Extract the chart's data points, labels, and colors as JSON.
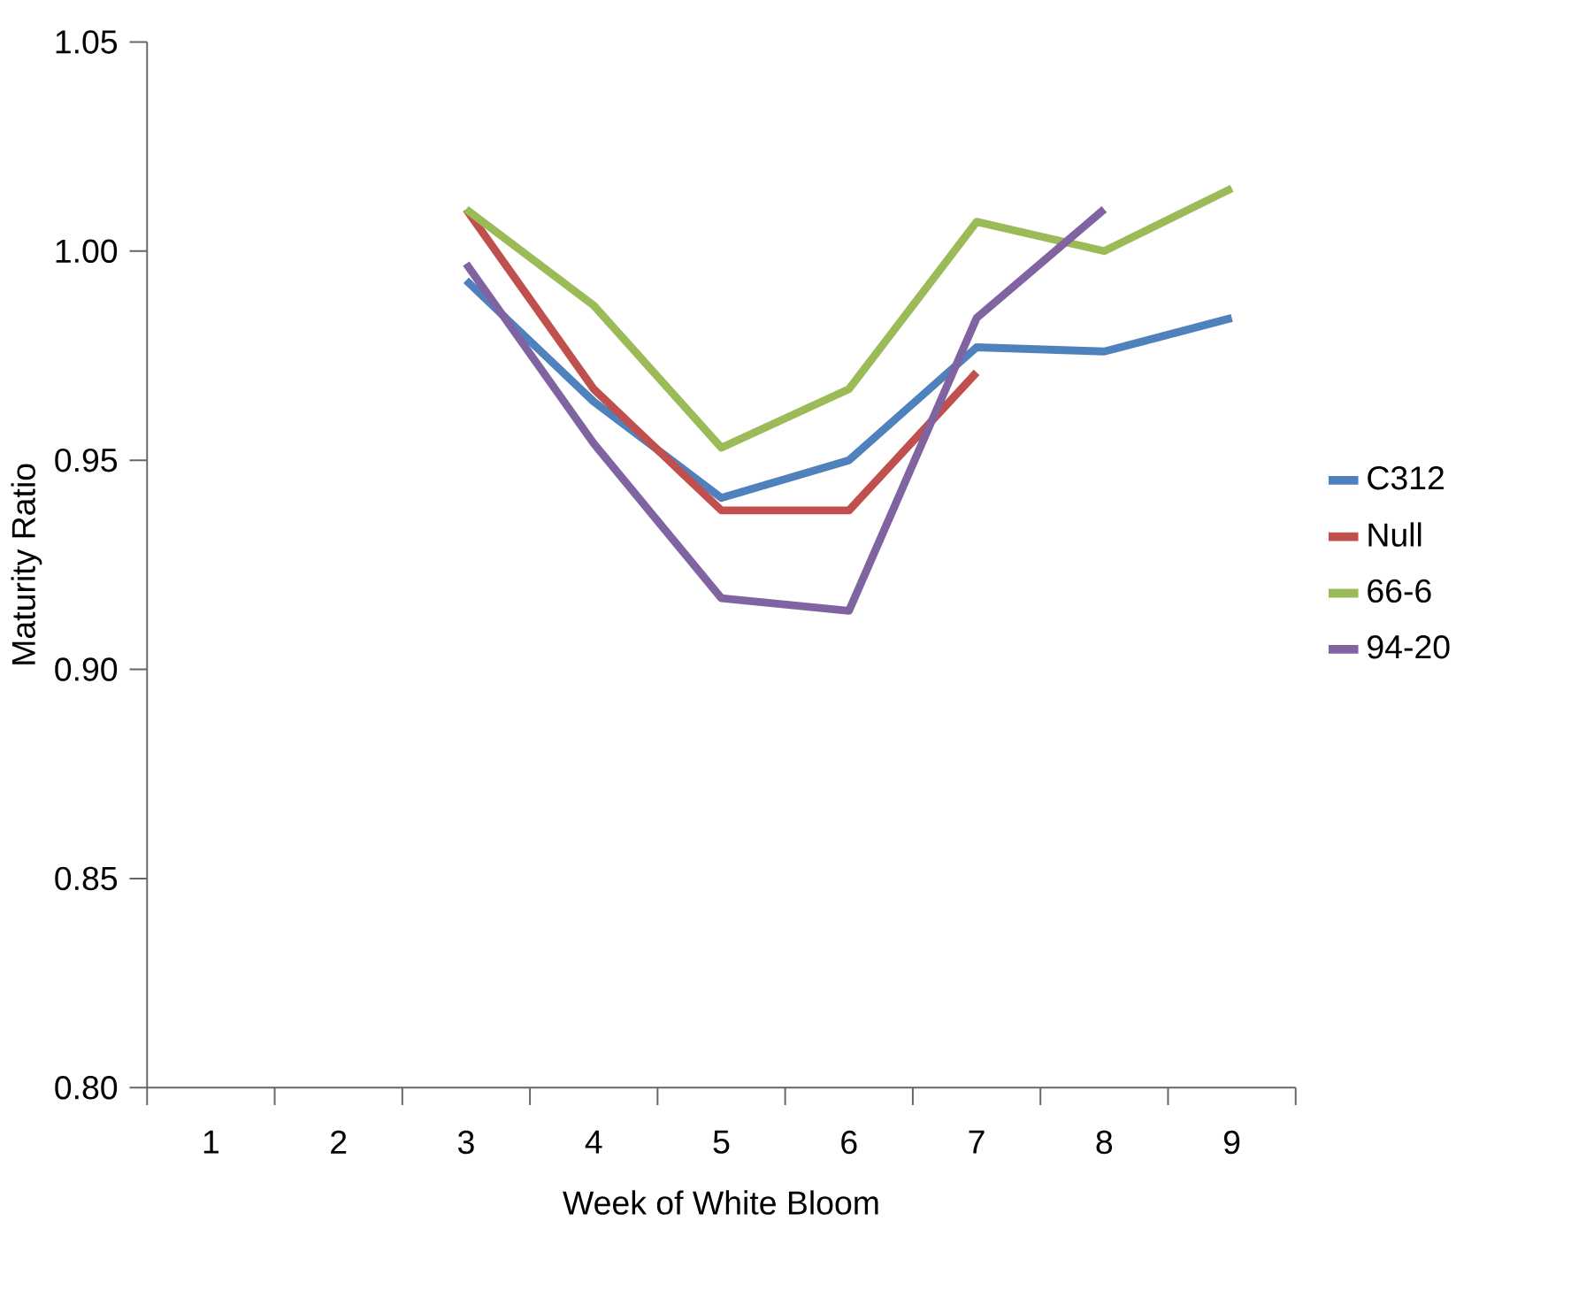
{
  "chart_data": {
    "type": "line",
    "xlabel": "Week of White Bloom",
    "ylabel": "Maturity Ratio",
    "categories": [
      "1",
      "2",
      "3",
      "4",
      "5",
      "6",
      "7",
      "8",
      "9"
    ],
    "series": [
      {
        "name": "C312",
        "color": "#4f81bd",
        "values": [
          null,
          null,
          0.993,
          0.964,
          0.941,
          0.95,
          0.977,
          0.976,
          0.984
        ]
      },
      {
        "name": "Null",
        "color": "#c0504d",
        "values": [
          null,
          null,
          1.01,
          0.967,
          0.938,
          0.938,
          0.971,
          null,
          null
        ]
      },
      {
        "name": "66-6",
        "color": "#9bbb59",
        "values": [
          null,
          null,
          1.01,
          0.987,
          0.953,
          0.967,
          1.007,
          1.0,
          1.015
        ]
      },
      {
        "name": "94-20",
        "color": "#8064a2",
        "values": [
          null,
          null,
          0.997,
          0.954,
          0.917,
          0.914,
          0.984,
          1.01,
          null
        ]
      }
    ],
    "ylim": [
      0.8,
      1.05
    ],
    "yticks": [
      {
        "value": 0.8,
        "label": "0.80"
      },
      {
        "value": 0.85,
        "label": "0.85"
      },
      {
        "value": 0.9,
        "label": "0.90"
      },
      {
        "value": 0.95,
        "label": "0.95"
      },
      {
        "value": 1.0,
        "label": "1.00"
      },
      {
        "value": 1.05,
        "label": "1.05"
      }
    ],
    "legend": "right",
    "grid": false,
    "marker": "none",
    "line_style": "solid"
  }
}
